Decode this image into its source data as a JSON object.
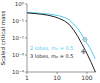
{
  "chart_data": {
    "type": "line",
    "ylabel": "Scaled critical mass",
    "log": true,
    "grid": false,
    "x": [
      1,
      2,
      3,
      5,
      8,
      12,
      18,
      25,
      35,
      50,
      70,
      100,
      140,
      190
    ],
    "series": [
      {
        "name": "2 lobes,  m₂ = 0.5",
        "color": "#55ccee",
        "values": [
          0.32,
          0.3,
          0.28,
          0.26,
          0.23,
          0.2,
          0.16,
          0.12,
          0.07,
          0.035,
          0.014,
          0.005,
          0.0018,
          0.0006
        ]
      },
      {
        "name": "3 lobes,  m₂ = 0.5",
        "color": "#222222",
        "values": [
          0.3,
          0.27,
          0.25,
          0.22,
          0.18,
          0.14,
          0.1,
          0.065,
          0.032,
          0.012,
          0.004,
          0.0012,
          0.00035,
          0.0001
        ]
      }
    ],
    "highlights": [
      {
        "x": 85,
        "y": 0.0082,
        "color": "#55ccee"
      },
      {
        "x": 78,
        "y": 0.0016,
        "color": "#444444"
      }
    ],
    "xlim": [
      1,
      200
    ],
    "xticks": [
      1,
      10,
      100
    ],
    "ylim": [
      0.0001,
      1.0
    ],
    "yticks": [
      {
        "value": 0.0001,
        "label": "10⁻⁴"
      },
      {
        "value": 0.001,
        "label": "10⁻³"
      },
      {
        "value": 0.01,
        "label": "10⁻²"
      },
      {
        "value": 0.1,
        "label": "10⁻¹"
      },
      {
        "value": 1.0,
        "label": "10⁰"
      }
    ]
  }
}
